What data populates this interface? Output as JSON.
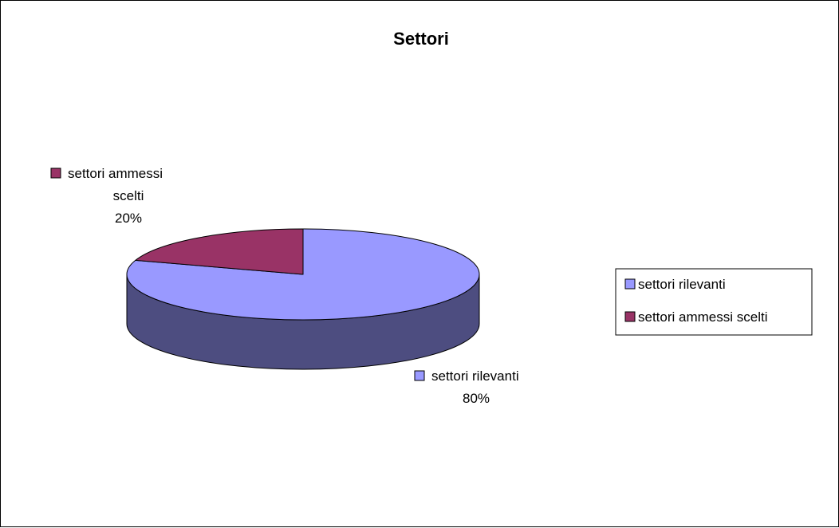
{
  "chart_data": {
    "type": "pie",
    "style": "3d",
    "title": "Settori",
    "categories": [
      "settori rilevanti",
      "settori ammessi scelti"
    ],
    "values": [
      80,
      20
    ],
    "value_unit": "%",
    "colors": [
      "#9999ff",
      "#993366"
    ],
    "side_colors": [
      "#4d4d80",
      "#4d1a33"
    ],
    "data_labels": [
      {
        "lines": [
          "settori rilevanti",
          "80%"
        ]
      },
      {
        "lines": [
          "settori ammessi",
          "scelti",
          "20%"
        ]
      }
    ],
    "legend": {
      "position": "right",
      "entries": [
        "settori rilevanti",
        "settori ammessi scelti"
      ]
    }
  }
}
